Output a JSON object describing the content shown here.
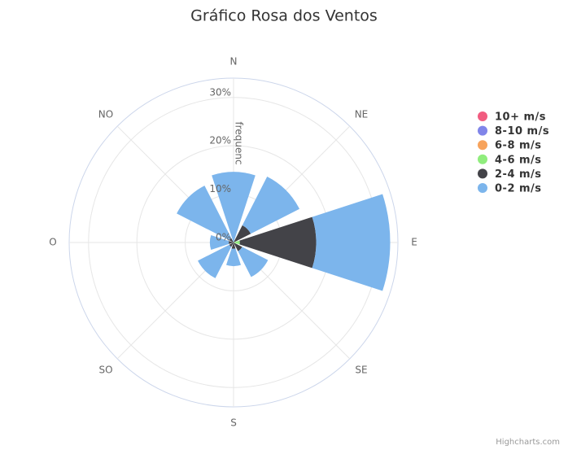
{
  "chart_data": {
    "type": "windrose",
    "title": "Gráfico Rosa dos Ventos",
    "credit": "Highcharts.com",
    "y_axis_title": "frequenc",
    "categories": [
      "N",
      "NE",
      "E",
      "SE",
      "S",
      "SO",
      "O",
      "NO"
    ],
    "ylim": [
      0,
      34
    ],
    "yticks": [
      {
        "value": 0,
        "label": "0%"
      },
      {
        "value": 10,
        "label": "10%"
      },
      {
        "value": 20,
        "label": "20%"
      },
      {
        "value": 30,
        "label": "30%"
      }
    ],
    "grid": true,
    "series": [
      {
        "name": "10+ m/s",
        "color": "#f15c80",
        "values": [
          0,
          0,
          0,
          0,
          0,
          0,
          0,
          0
        ]
      },
      {
        "name": "8-10 m/s",
        "color": "#8085e9",
        "values": [
          0,
          0,
          0,
          0,
          0,
          0,
          0,
          0
        ]
      },
      {
        "name": "6-8 m/s",
        "color": "#f7a35c",
        "values": [
          0,
          0,
          0,
          0,
          0,
          0,
          0,
          0
        ]
      },
      {
        "name": "4-6 m/s",
        "color": "#90ed7d",
        "values": [
          0,
          0,
          1.3,
          0,
          0,
          0,
          0,
          0
        ]
      },
      {
        "name": "2-4 m/s",
        "color": "#434348",
        "values": [
          0,
          4.0,
          15.8,
          2.0,
          1.3,
          1.0,
          1.0,
          1.0
        ]
      },
      {
        "name": "0-2 m/s",
        "color": "#7cb5ec",
        "values": [
          14.6,
          11.3,
          15.3,
          6.0,
          3.6,
          7.3,
          3.9,
          12.2
        ]
      }
    ]
  }
}
